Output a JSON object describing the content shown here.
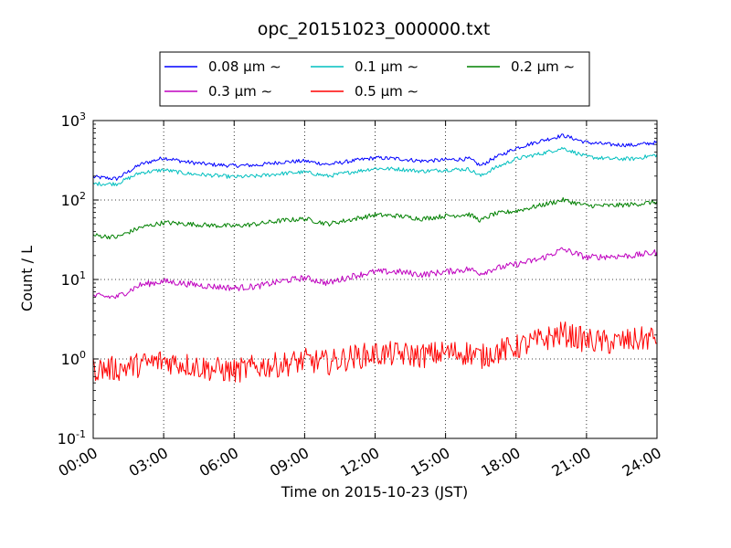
{
  "chart_data": {
    "type": "line",
    "title": "opc_20151023_000000.txt",
    "xlabel": "Time on 2015-10-23 (JST)",
    "ylabel": "Count / L",
    "yscale": "log",
    "ylim": [
      0.1,
      1000
    ],
    "xlim": [
      "2015-10-23 00:00",
      "2015-10-24 00:00"
    ],
    "grid": true,
    "legend_position": "top-center",
    "x_ticks": [
      {
        "value": 0,
        "label": "00:00"
      },
      {
        "value": 3,
        "label": "03:00"
      },
      {
        "value": 6,
        "label": "06:00"
      },
      {
        "value": 9,
        "label": "09:00"
      },
      {
        "value": 12,
        "label": "12:00"
      },
      {
        "value": 15,
        "label": "15:00"
      },
      {
        "value": 18,
        "label": "18:00"
      },
      {
        "value": 21,
        "label": "21:00"
      },
      {
        "value": 24,
        "label": "24:00"
      }
    ],
    "y_ticks": [
      {
        "value": 0.1,
        "base": "10",
        "exp": "-1"
      },
      {
        "value": 1,
        "base": "10",
        "exp": "0"
      },
      {
        "value": 10,
        "base": "10",
        "exp": "1"
      },
      {
        "value": 100,
        "base": "10",
        "exp": "2"
      },
      {
        "value": 1000,
        "base": "10",
        "exp": "3"
      }
    ],
    "x": [
      "00:00",
      "01:00",
      "02:00",
      "03:00",
      "04:00",
      "05:00",
      "06:00",
      "07:00",
      "08:00",
      "09:00",
      "10:00",
      "11:00",
      "12:00",
      "13:00",
      "14:00",
      "15:00",
      "16:00",
      "16:30",
      "17:00",
      "18:00",
      "19:00",
      "20:00",
      "21:00",
      "22:00",
      "23:00",
      "24:00"
    ],
    "series": [
      {
        "name": "0.08 μm ∼",
        "color": "#0000ff",
        "values": [
          195,
          185,
          280,
          340,
          300,
          280,
          270,
          275,
          300,
          310,
          280,
          310,
          340,
          330,
          310,
          320,
          330,
          270,
          330,
          450,
          550,
          650,
          530,
          500,
          490,
          530
        ]
      },
      {
        "name": "0.1 μm ∼",
        "color": "#00bfbf",
        "values": [
          160,
          160,
          220,
          240,
          215,
          205,
          195,
          200,
          215,
          225,
          200,
          225,
          250,
          245,
          230,
          240,
          245,
          200,
          245,
          330,
          380,
          450,
          350,
          330,
          330,
          370
        ]
      },
      {
        "name": "0.2 μm ∼",
        "color": "#008000",
        "values": [
          36,
          34,
          45,
          52,
          50,
          48,
          47,
          50,
          55,
          58,
          50,
          57,
          65,
          63,
          58,
          63,
          66,
          55,
          66,
          73,
          85,
          100,
          85,
          85,
          88,
          95
        ]
      },
      {
        "name": "0.3 μm ∼",
        "color": "#bf00bf",
        "values": [
          6.2,
          6.0,
          8.5,
          9.5,
          8.8,
          8.2,
          7.8,
          8.2,
          9.5,
          10.5,
          9.0,
          11.0,
          12.5,
          12.5,
          11.5,
          12.5,
          13.5,
          12.0,
          13.5,
          15.5,
          18.0,
          24.0,
          19.0,
          19.5,
          20.0,
          22.0
        ]
      },
      {
        "name": "0.5 μm ∼",
        "color": "#ff0000",
        "values": [
          0.75,
          0.75,
          0.85,
          0.95,
          0.85,
          0.75,
          0.7,
          0.8,
          0.85,
          0.95,
          0.9,
          1.05,
          1.15,
          1.15,
          1.1,
          1.2,
          1.2,
          1.05,
          1.2,
          1.4,
          1.7,
          2.1,
          1.7,
          1.6,
          1.7,
          1.9
        ]
      }
    ]
  }
}
